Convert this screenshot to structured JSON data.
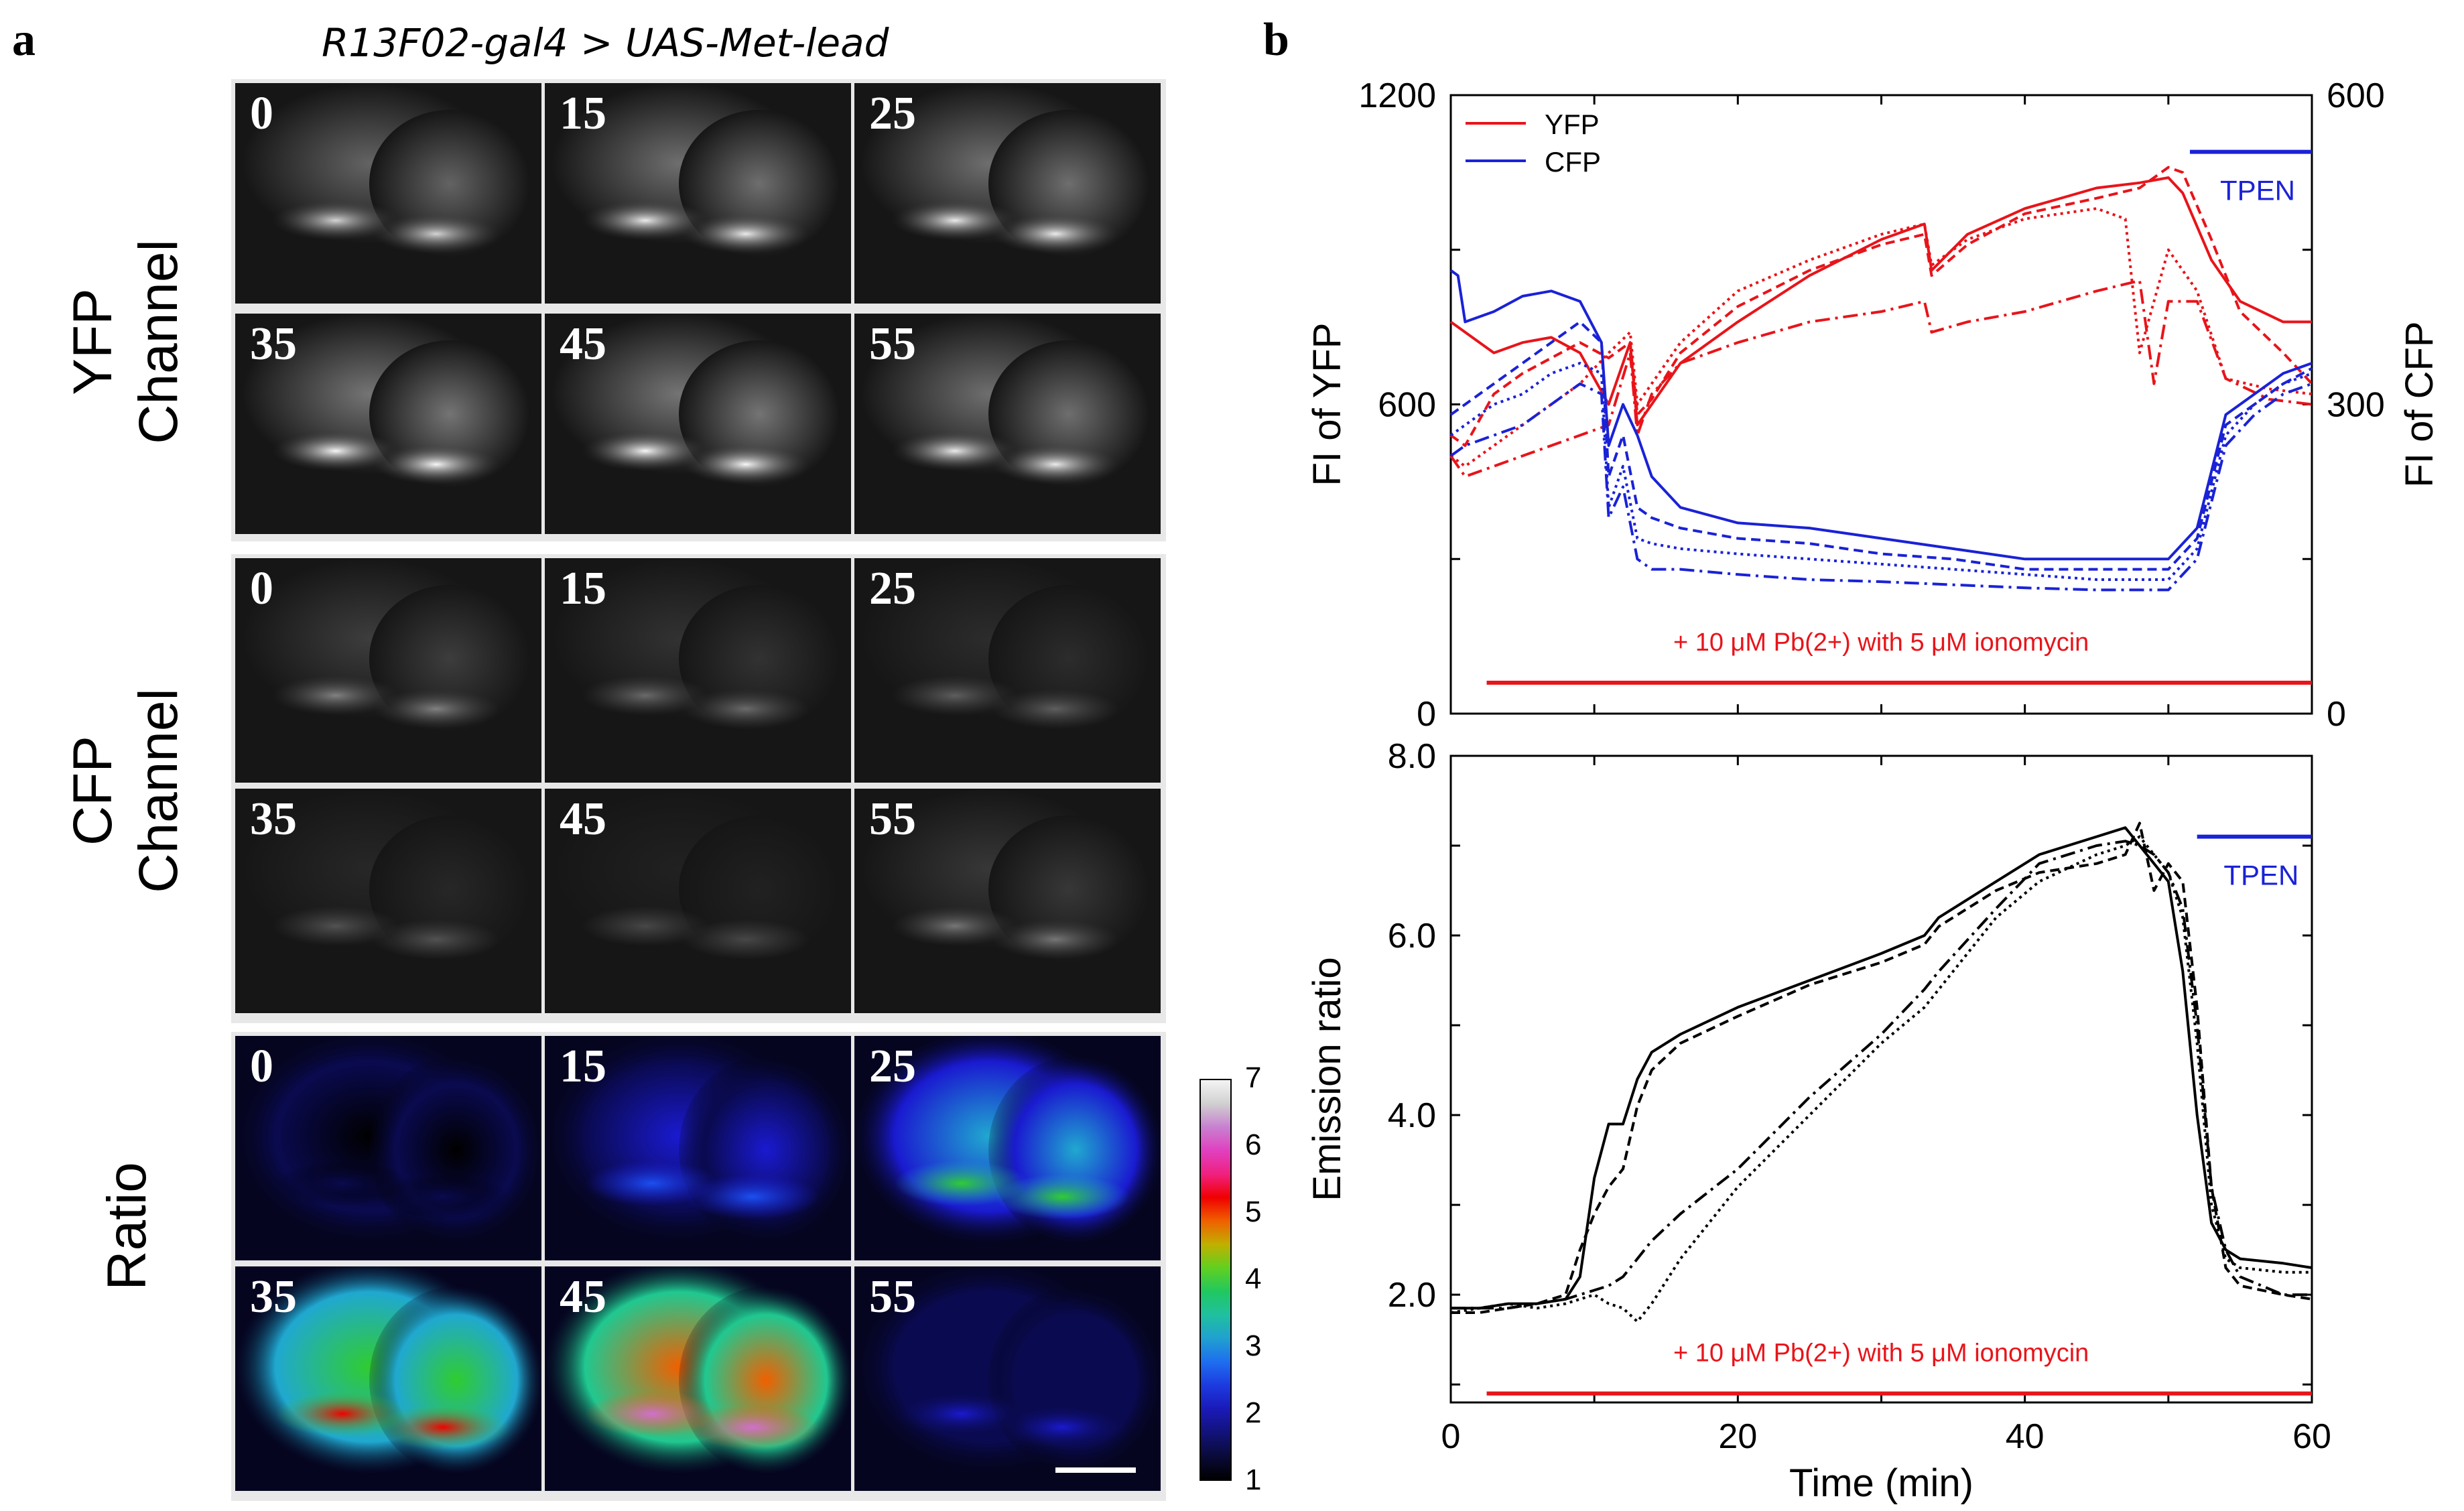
{
  "panel_a": {
    "letter": "a",
    "title": "R13F02-gal4 > UAS-Met-lead",
    "rows": [
      {
        "label_line1": "YFP",
        "label_line2": "Channel",
        "style": "gray",
        "frames": [
          "0",
          "15",
          "25",
          "35",
          "45",
          "55"
        ],
        "intensity": [
          0.9,
          1.0,
          1.0,
          1.05,
          1.05,
          1.0
        ]
      },
      {
        "label_line1": "CFP",
        "label_line2": "Channel",
        "style": "gray",
        "frames": [
          "0",
          "15",
          "25",
          "35",
          "45",
          "55"
        ],
        "intensity": [
          0.55,
          0.45,
          0.4,
          0.35,
          0.3,
          0.5
        ]
      },
      {
        "label_line1": "Ratio",
        "label_line2": "",
        "style": "pseudo",
        "frames": [
          "0",
          "15",
          "25",
          "35",
          "45",
          "55"
        ],
        "level": [
          1.8,
          2.5,
          4.0,
          5.5,
          6.8,
          2.0
        ]
      }
    ],
    "colorbar": {
      "ticks": [
        "1",
        "2",
        "3",
        "4",
        "5",
        "6",
        "7"
      ],
      "colors": [
        "#000000",
        "#0a0a3a",
        "#12127a",
        "#1a1ab8",
        "#1c3ae0",
        "#1e6ef0",
        "#20a0d0",
        "#20c0a0",
        "#20c860",
        "#60d020",
        "#c0b000",
        "#f06000",
        "#f00000",
        "#f02080",
        "#e040c0",
        "#c880d0",
        "#d0d0d0",
        "#f4f4f4"
      ]
    },
    "scale_bar": true
  },
  "panel_b": {
    "letter": "b",
    "colors": {
      "yfp": "#e8141a",
      "cfp": "#1a22d6",
      "ratio": "#000000"
    },
    "chart_data": [
      {
        "type": "line",
        "title": "",
        "xlabel": "",
        "ylabel": "FI of YFP",
        "ylabel_right": "FI of CFP",
        "xlim": [
          0,
          60
        ],
        "ylim": [
          0,
          1200
        ],
        "ylim_right": [
          0,
          600
        ],
        "yticks": [
          "0",
          "600",
          "1200"
        ],
        "yticks_right": [
          "0",
          "300",
          "600"
        ],
        "legend": {
          "placement": "top-left",
          "entries": [
            "YFP",
            "CFP"
          ]
        },
        "annotations": [
          {
            "text": "TPEN",
            "color": "#1a22d6",
            "bar_x": [
              51.5,
              60
            ],
            "bar_y": 1090
          },
          {
            "text": "+ 10 μM Pb(2+) with 5 μM ionomycin",
            "color": "#e8141a",
            "bar_x": [
              2.5,
              60
            ],
            "bar_y": 60
          }
        ],
        "series": [
          {
            "name": "YFP",
            "axis": "left",
            "x": [
              0,
              1,
              3,
              5,
              7,
              9,
              11,
              12.5,
              13,
              14,
              16,
              20,
              25,
              30,
              33,
              33.5,
              36,
              40,
              45,
              48,
              50,
              51,
              53,
              55,
              58,
              60
            ],
            "y": [
              760,
              740,
              700,
              720,
              730,
              700,
              600,
              720,
              560,
              600,
              680,
              760,
              850,
              920,
              950,
              860,
              930,
              980,
              1020,
              1030,
              1040,
              1010,
              880,
              800,
              760,
              760
            ]
          },
          {
            "name": "",
            "axis": "left",
            "x": [
              0,
              1,
              3,
              5,
              7,
              9,
              11,
              12.5,
              13,
              14,
              16,
              20,
              25,
              30,
              33,
              33.5,
              36,
              40,
              45,
              48,
              50,
              51,
              53,
              55,
              58,
              60
            ],
            "y": [
              540,
              520,
              620,
              660,
              690,
              720,
              690,
              720,
              580,
              610,
              700,
              790,
              860,
              910,
              930,
              850,
              910,
              970,
              1000,
              1020,
              1060,
              1050,
              920,
              780,
              700,
              640
            ]
          },
          {
            "name": "",
            "axis": "left",
            "x": [
              0,
              1,
              3,
              5,
              7,
              9,
              11,
              12.5,
              13,
              14,
              16,
              20,
              25,
              30,
              33,
              33.5,
              36,
              40,
              45,
              47,
              48,
              50,
              52,
              54,
              57,
              60
            ],
            "y": [
              500,
              480,
              520,
              560,
              600,
              640,
              700,
              740,
              600,
              640,
              720,
              820,
              880,
              930,
              950,
              870,
              920,
              960,
              980,
              960,
              700,
              900,
              820,
              650,
              630,
              620
            ]
          },
          {
            "name": "",
            "axis": "left",
            "x": [
              0,
              1,
              3,
              5,
              7,
              9,
              11,
              12.5,
              13,
              14,
              16,
              20,
              25,
              30,
              33,
              33.5,
              36,
              40,
              45,
              48,
              49,
              50,
              52,
              54,
              57,
              60
            ],
            "y": [
              500,
              460,
              480,
              500,
              520,
              540,
              560,
              700,
              540,
              620,
              680,
              720,
              760,
              780,
              800,
              740,
              760,
              780,
              820,
              840,
              640,
              800,
              800,
              650,
              610,
              600
            ]
          },
          {
            "name": "CFP",
            "axis": "right",
            "x": [
              0,
              0.5,
              1,
              3,
              5,
              7,
              9,
              10.5,
              11,
              12,
              13,
              14,
              16,
              20,
              25,
              30,
              35,
              40,
              45,
              50,
              52,
              54,
              56,
              58,
              60
            ],
            "y": [
              430,
              425,
              380,
              390,
              405,
              410,
              400,
              360,
              260,
              300,
              270,
              230,
              200,
              185,
              180,
              170,
              160,
              150,
              150,
              150,
              180,
              290,
              310,
              330,
              340
            ]
          },
          {
            "name": "",
            "axis": "right",
            "x": [
              0,
              1,
              3,
              5,
              7,
              9,
              10.5,
              11,
              12,
              13,
              14,
              16,
              20,
              25,
              30,
              35,
              40,
              45,
              50,
              52,
              54,
              56,
              58,
              60
            ],
            "y": [
              290,
              300,
              320,
              340,
              360,
              380,
              360,
              230,
              270,
              200,
              190,
              180,
              170,
              165,
              155,
              150,
              140,
              140,
              140,
              170,
              280,
              300,
              320,
              335
            ]
          },
          {
            "name": "",
            "axis": "right",
            "x": [
              0,
              1,
              3,
              5,
              7,
              9,
              10.5,
              11,
              12,
              13,
              14,
              16,
              20,
              25,
              30,
              35,
              40,
              45,
              50,
              52,
              54,
              56,
              58,
              60
            ],
            "y": [
              270,
              280,
              300,
              310,
              330,
              340,
              330,
              200,
              240,
              170,
              165,
              160,
              155,
              150,
              145,
              140,
              135,
              130,
              130,
              160,
              270,
              300,
              320,
              330
            ]
          },
          {
            "name": "",
            "axis": "right",
            "x": [
              0,
              1,
              3,
              5,
              7,
              9,
              10.5,
              11,
              12,
              13,
              14,
              16,
              20,
              25,
              30,
              35,
              40,
              45,
              50,
              52,
              54,
              56,
              58,
              60
            ],
            "y": [
              250,
              260,
              270,
              280,
              300,
              320,
              310,
              190,
              220,
              150,
              140,
              140,
              135,
              130,
              128,
              125,
              122,
              120,
              120,
              150,
              260,
              290,
              310,
              320
            ]
          }
        ]
      },
      {
        "type": "line",
        "title": "",
        "xlabel": "Time (min)",
        "ylabel": "Emission ratio",
        "xlim": [
          0,
          60
        ],
        "ylim": [
          0.8,
          8.0
        ],
        "xticks": [
          "0",
          "20",
          "40",
          "60"
        ],
        "yticks": [
          "2.0",
          "4.0",
          "6.0",
          "8.0"
        ],
        "annotations": [
          {
            "text": "TPEN",
            "color": "#1a22d6",
            "bar_x": [
              52,
              60
            ],
            "bar_y": 7.1
          },
          {
            "text": "+ 10 μM Pb(2+) with 5 μM ionomycin",
            "color": "#e8141a",
            "bar_x": [
              2.5,
              60
            ],
            "bar_y": 0.9
          }
        ],
        "series": [
          {
            "name": "",
            "x": [
              0,
              2,
              4,
              6,
              8,
              9,
              10,
              11,
              12,
              13,
              14,
              16,
              20,
              25,
              30,
              33,
              34,
              38,
              41,
              45,
              47,
              48,
              49,
              50,
              51,
              52,
              53,
              54,
              55,
              58,
              60
            ],
            "y": [
              1.85,
              1.85,
              1.9,
              1.9,
              1.95,
              2.2,
              3.3,
              3.9,
              3.9,
              4.4,
              4.7,
              4.9,
              5.2,
              5.5,
              5.8,
              6.0,
              6.2,
              6.6,
              6.9,
              7.1,
              7.2,
              7.0,
              6.8,
              6.6,
              5.6,
              4.0,
              2.8,
              2.5,
              2.4,
              2.35,
              2.3
            ]
          },
          {
            "name": "",
            "x": [
              0,
              2,
              4,
              6,
              8,
              9,
              10,
              11,
              12,
              13,
              14,
              16,
              20,
              25,
              30,
              33,
              34,
              38,
              41,
              45,
              47,
              48,
              49,
              50,
              51,
              52,
              53,
              54,
              55,
              58,
              60
            ],
            "y": [
              1.8,
              1.8,
              1.85,
              1.9,
              2.0,
              2.5,
              2.9,
              3.2,
              3.4,
              4.1,
              4.5,
              4.8,
              5.1,
              5.45,
              5.7,
              5.9,
              6.1,
              6.5,
              6.7,
              6.8,
              6.9,
              7.25,
              6.5,
              6.8,
              6.6,
              5.2,
              3.2,
              2.3,
              2.1,
              2.0,
              1.95
            ]
          },
          {
            "name": "",
            "x": [
              0,
              2,
              4,
              6,
              8,
              9,
              10,
              11,
              12,
              13,
              14,
              16,
              20,
              25,
              30,
              33,
              34,
              38,
              41,
              45,
              47,
              48,
              49,
              50,
              51,
              52,
              53,
              54,
              55,
              58,
              60
            ],
            "y": [
              1.8,
              1.85,
              1.9,
              1.85,
              1.9,
              1.95,
              2.0,
              1.9,
              1.85,
              1.7,
              1.9,
              2.4,
              3.2,
              4.0,
              4.8,
              5.2,
              5.4,
              6.2,
              6.6,
              6.9,
              7.0,
              7.1,
              6.9,
              6.7,
              6.2,
              4.8,
              3.0,
              2.4,
              2.3,
              2.25,
              2.25
            ]
          },
          {
            "name": "",
            "x": [
              0,
              2,
              4,
              6,
              8,
              9,
              10,
              11,
              12,
              13,
              14,
              16,
              20,
              25,
              30,
              33,
              34,
              38,
              41,
              45,
              47,
              48,
              49,
              50,
              51,
              52,
              53,
              54,
              55,
              58,
              60
            ],
            "y": [
              1.85,
              1.85,
              1.85,
              1.9,
              1.95,
              2.0,
              2.05,
              2.1,
              2.2,
              2.4,
              2.6,
              2.9,
              3.4,
              4.2,
              4.9,
              5.4,
              5.6,
              6.3,
              6.8,
              7.0,
              7.05,
              7.0,
              6.9,
              6.7,
              6.3,
              5.0,
              3.2,
              2.5,
              2.2,
              2.0,
              2.0
            ]
          }
        ]
      }
    ]
  }
}
